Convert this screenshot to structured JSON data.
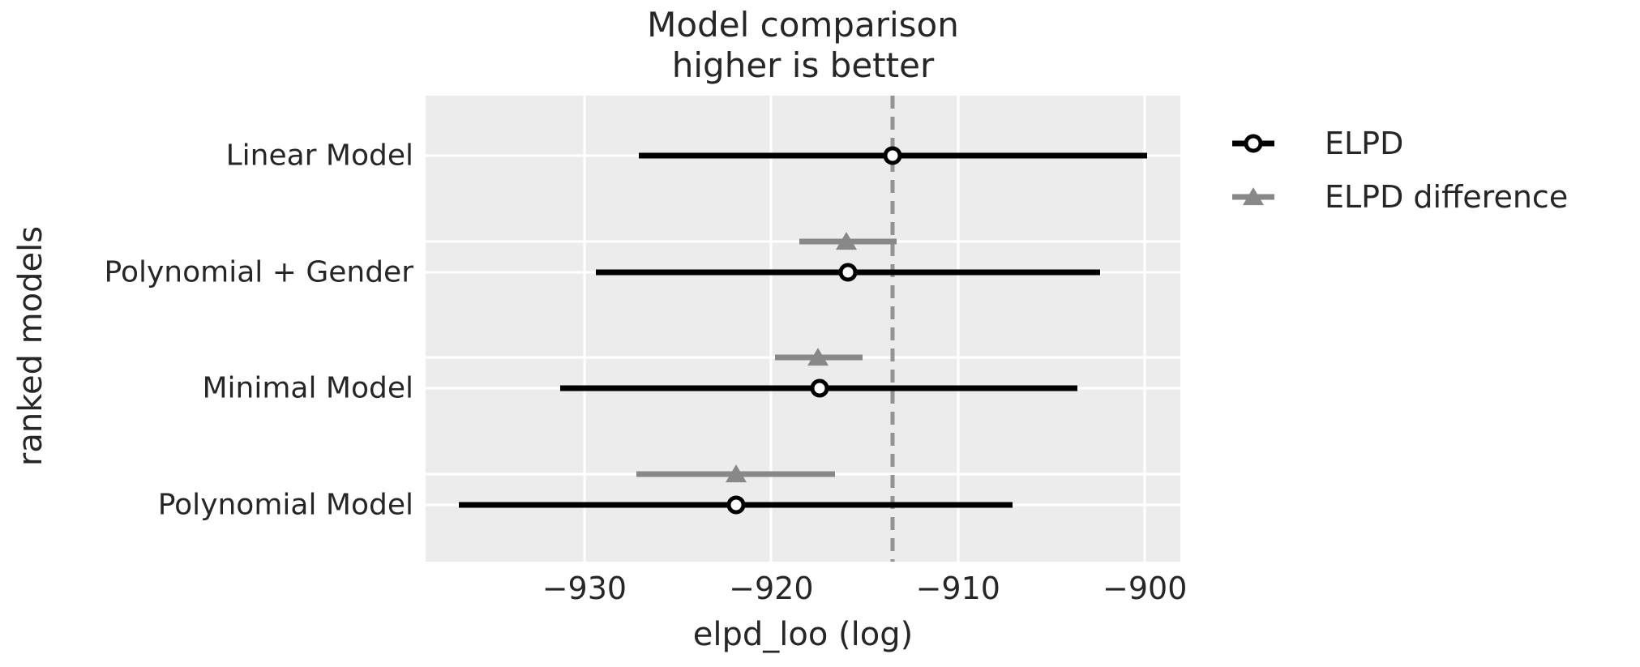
{
  "chart_data": {
    "type": "errorbar",
    "title_line1": "Model comparison",
    "title_line2": "higher is better",
    "xlabel": "elpd_loo (log)",
    "ylabel": "ranked models",
    "legend": [
      {
        "label": "ELPD",
        "marker": "open-circle-on-black-line"
      },
      {
        "label": "ELPD difference",
        "marker": "gray-triangle-on-gray-line"
      }
    ],
    "legend_position": "outside-upper-right",
    "grid": true,
    "xlim": [
      -938.5,
      -898.1
    ],
    "ylim": [
      -0.515,
      3.487
    ],
    "diff_row_offset": -0.265,
    "dashed_line_x": -913.5,
    "xticks": [
      {
        "value": -930,
        "label": "−930"
      },
      {
        "value": -920,
        "label": "−920"
      },
      {
        "value": -910,
        "label": "−910"
      },
      {
        "value": -900,
        "label": "−900"
      }
    ],
    "models": [
      {
        "name": "Linear Model",
        "y": 0,
        "elpd": -913.5,
        "elpd_ci": [
          -927.1,
          -899.9
        ]
      },
      {
        "name": "Polynomial + Gender",
        "y": 1,
        "elpd": -915.9,
        "elpd_ci": [
          -929.4,
          -902.4
        ],
        "elpd_diff": -916.0,
        "elpd_diff_ci": [
          -918.5,
          -913.3
        ]
      },
      {
        "name": "Minimal Model",
        "y": 2,
        "elpd": -917.4,
        "elpd_ci": [
          -931.3,
          -903.6
        ],
        "elpd_diff": -917.5,
        "elpd_diff_ci": [
          -919.8,
          -915.1
        ]
      },
      {
        "name": "Polynomial Model",
        "y": 3,
        "elpd": -921.9,
        "elpd_ci": [
          -936.7,
          -907.1
        ],
        "elpd_diff": -921.9,
        "elpd_diff_ci": [
          -927.2,
          -916.6
        ]
      }
    ],
    "colors": {
      "plot_bg": "#ECECEC",
      "grid": "#FFFFFF",
      "elpd": "#000000",
      "elpd_diff": "#888888",
      "dashed_line": "#949494",
      "text": "#262626"
    }
  }
}
